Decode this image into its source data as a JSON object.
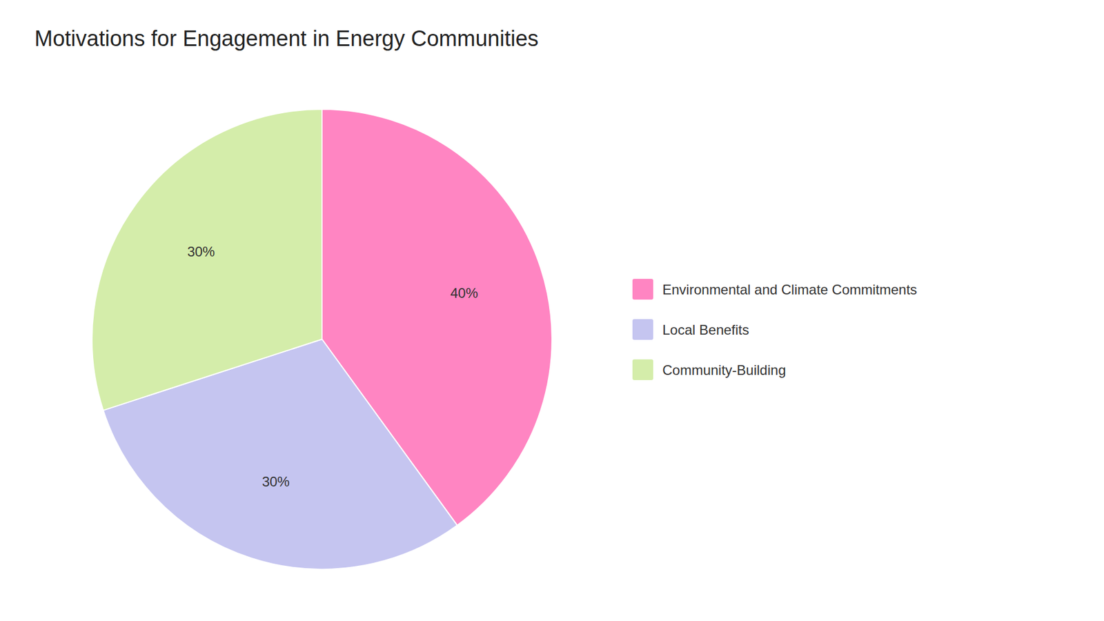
{
  "chart_data": {
    "type": "pie",
    "title": "Motivations for Engagement in Energy Communities",
    "categories": [
      "Environmental and Climate Commitments",
      "Local Benefits",
      "Community-Building"
    ],
    "values": [
      40,
      30,
      30
    ],
    "value_labels": [
      "40%",
      "30%",
      "30%"
    ],
    "colors": [
      "#FF85C2",
      "#C5C5F0",
      "#D4EDAA"
    ],
    "data_labels": true,
    "legend": "right"
  }
}
